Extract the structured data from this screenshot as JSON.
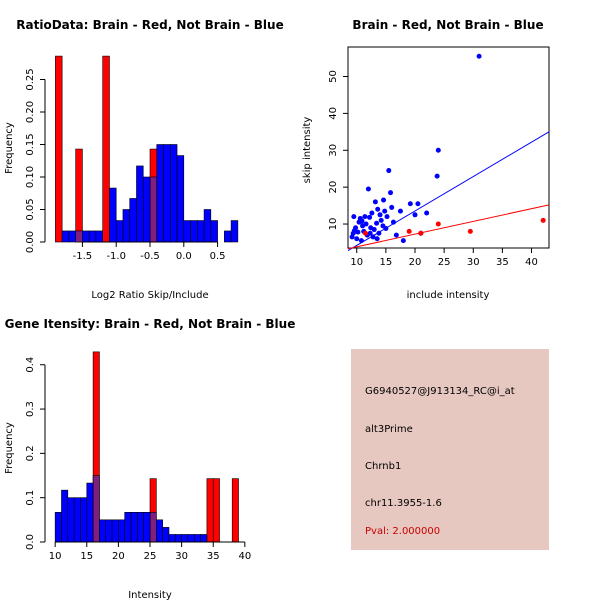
{
  "colors": {
    "red": "#ff0000",
    "blue": "#0000ff",
    "overlap": "#7f1f7f",
    "bar_outline": "#000000",
    "info_bg": "#e6c8c0",
    "pval": "#cc0000"
  },
  "chart_data": [
    {
      "id": "ratio",
      "type": "bar",
      "title": "RatioData: Brain - Red, Not Brain - Blue",
      "xlabel": "Log2 Ratio Skip/Include",
      "ylabel": "Frequency",
      "xlim": [
        -1.95,
        0.95
      ],
      "ylim": [
        0,
        0.3
      ],
      "xticks": [
        -1.5,
        -1.0,
        -0.5,
        0.0,
        0.5
      ],
      "xtick_labels": [
        "-1.5",
        "-1.0",
        "-0.5",
        "0.0",
        "0.5"
      ],
      "yticks": [
        0.0,
        0.05,
        0.1,
        0.15,
        0.2,
        0.25
      ],
      "ytick_labels": [
        "0.00",
        "0.05",
        "0.10",
        "0.15",
        "0.20",
        "0.25"
      ],
      "bin_width": 0.1,
      "red_bins": [
        [
          -1.9,
          0.286
        ],
        [
          -1.6,
          0.143
        ],
        [
          -1.2,
          0.286
        ],
        [
          -0.5,
          0.143
        ]
      ],
      "blue_bins": [
        [
          -1.8,
          0.017
        ],
        [
          -1.7,
          0.017
        ],
        [
          -1.6,
          0.017
        ],
        [
          -1.5,
          0.017
        ],
        [
          -1.4,
          0.017
        ],
        [
          -1.3,
          0.017
        ],
        [
          -1.1,
          0.083
        ],
        [
          -1.0,
          0.033
        ],
        [
          -0.9,
          0.05
        ],
        [
          -0.8,
          0.067
        ],
        [
          -0.7,
          0.117
        ],
        [
          -0.6,
          0.1
        ],
        [
          -0.5,
          0.1
        ],
        [
          -0.4,
          0.15
        ],
        [
          -0.3,
          0.15
        ],
        [
          -0.2,
          0.15
        ],
        [
          -0.1,
          0.133
        ],
        [
          0.0,
          0.033
        ],
        [
          0.1,
          0.033
        ],
        [
          0.2,
          0.033
        ],
        [
          0.3,
          0.05
        ],
        [
          0.4,
          0.033
        ],
        [
          0.6,
          0.017
        ],
        [
          0.7,
          0.033
        ]
      ]
    },
    {
      "id": "scatter",
      "type": "scatter",
      "title": "Brain - Red, Not Brain - Blue",
      "xlabel": "include intensity",
      "ylabel": "skip intensity",
      "xlim": [
        8.5,
        43
      ],
      "ylim": [
        3.5,
        58
      ],
      "xticks": [
        10,
        15,
        20,
        25,
        30,
        35,
        40
      ],
      "xtick_labels": [
        "10",
        "15",
        "20",
        "25",
        "30",
        "35",
        "40"
      ],
      "yticks": [
        10,
        20,
        30,
        40,
        50
      ],
      "ytick_labels": [
        "10",
        "20",
        "30",
        "40",
        "50"
      ],
      "blue_points": [
        [
          9.2,
          6.5
        ],
        [
          9.4,
          7.5
        ],
        [
          9.6,
          8.2
        ],
        [
          9.8,
          9.0
        ],
        [
          10.0,
          6.0
        ],
        [
          10.2,
          7.8
        ],
        [
          10.4,
          10.5
        ],
        [
          10.6,
          11.5
        ],
        [
          10.8,
          5.5
        ],
        [
          11.0,
          9.5
        ],
        [
          11.2,
          8.0
        ],
        [
          11.4,
          12.0
        ],
        [
          11.6,
          10.0
        ],
        [
          11.8,
          7.0
        ],
        [
          12.0,
          19.5
        ],
        [
          12.2,
          11.8
        ],
        [
          12.4,
          9.0
        ],
        [
          12.6,
          13.0
        ],
        [
          12.8,
          6.5
        ],
        [
          13.0,
          8.5
        ],
        [
          13.2,
          16.0
        ],
        [
          13.4,
          10.2
        ],
        [
          13.6,
          14.0
        ],
        [
          13.8,
          7.5
        ],
        [
          14.0,
          12.5
        ],
        [
          14.2,
          11.0
        ],
        [
          14.5,
          9.5
        ],
        [
          14.8,
          13.5
        ],
        [
          15.0,
          8.8
        ],
        [
          15.2,
          12.0
        ],
        [
          15.5,
          24.5
        ],
        [
          15.8,
          18.5
        ],
        [
          16.0,
          14.5
        ],
        [
          16.3,
          10.5
        ],
        [
          16.8,
          7.0
        ],
        [
          17.5,
          13.5
        ],
        [
          18.0,
          5.5
        ],
        [
          19.2,
          15.5
        ],
        [
          20.0,
          12.5
        ],
        [
          20.5,
          15.5
        ],
        [
          21.0,
          7.5
        ],
        [
          22.0,
          13.0
        ],
        [
          23.8,
          23.0
        ],
        [
          24.0,
          30.0
        ],
        [
          31.0,
          55.5
        ],
        [
          9.5,
          12.0
        ],
        [
          10.9,
          10.8
        ],
        [
          12.3,
          7.5
        ],
        [
          13.5,
          6.0
        ],
        [
          14.6,
          16.5
        ]
      ],
      "red_points": [
        [
          11.5,
          7.5
        ],
        [
          19.0,
          8.0
        ],
        [
          21.0,
          7.5
        ],
        [
          24.0,
          10.0
        ],
        [
          29.5,
          8.0
        ],
        [
          42.0,
          11.0
        ]
      ],
      "fit_lines": [
        {
          "name": "Not Brain",
          "color": "blue",
          "x0": 8.5,
          "y0": 2.8,
          "x1": 43,
          "y1": 35.0
        },
        {
          "name": "Brain",
          "color": "red",
          "x0": 8.5,
          "y0": 3.3,
          "x1": 43,
          "y1": 15.2
        }
      ]
    },
    {
      "id": "gene",
      "type": "bar",
      "title": "Gene Itensity: Brain - Red, Not Brain - Blue",
      "xlabel": "Intensity",
      "ylabel": "Frequency",
      "xlim": [
        9.5,
        40.5
      ],
      "ylim": [
        0,
        0.44
      ],
      "xticks": [
        10,
        15,
        20,
        25,
        30,
        35,
        40
      ],
      "xtick_labels": [
        "10",
        "15",
        "20",
        "25",
        "30",
        "35",
        "40"
      ],
      "yticks": [
        0.0,
        0.1,
        0.2,
        0.3,
        0.4
      ],
      "ytick_labels": [
        "0.0",
        "0.1",
        "0.2",
        "0.3",
        "0.4"
      ],
      "bin_width": 1,
      "red_bins": [
        [
          16,
          0.429
        ],
        [
          25,
          0.143
        ],
        [
          34,
          0.143
        ],
        [
          35,
          0.143
        ],
        [
          38,
          0.143
        ]
      ],
      "blue_bins": [
        [
          10,
          0.067
        ],
        [
          11,
          0.117
        ],
        [
          12,
          0.1
        ],
        [
          13,
          0.1
        ],
        [
          14,
          0.1
        ],
        [
          15,
          0.133
        ],
        [
          16,
          0.15
        ],
        [
          17,
          0.05
        ],
        [
          18,
          0.05
        ],
        [
          19,
          0.05
        ],
        [
          20,
          0.05
        ],
        [
          21,
          0.067
        ],
        [
          22,
          0.067
        ],
        [
          23,
          0.067
        ],
        [
          24,
          0.067
        ],
        [
          25,
          0.067
        ],
        [
          26,
          0.05
        ],
        [
          27,
          0.033
        ],
        [
          28,
          0.017
        ],
        [
          29,
          0.017
        ],
        [
          30,
          0.017
        ],
        [
          31,
          0.017
        ],
        [
          32,
          0.017
        ],
        [
          33,
          0.017
        ]
      ]
    }
  ],
  "info": {
    "probe_id": "G6940527@J913134_RC@i_at",
    "event_type": "alt3Prime",
    "gene": "Chrnb1",
    "location": "chr11.3955-1.6",
    "pval": "Pval: 2.000000"
  }
}
